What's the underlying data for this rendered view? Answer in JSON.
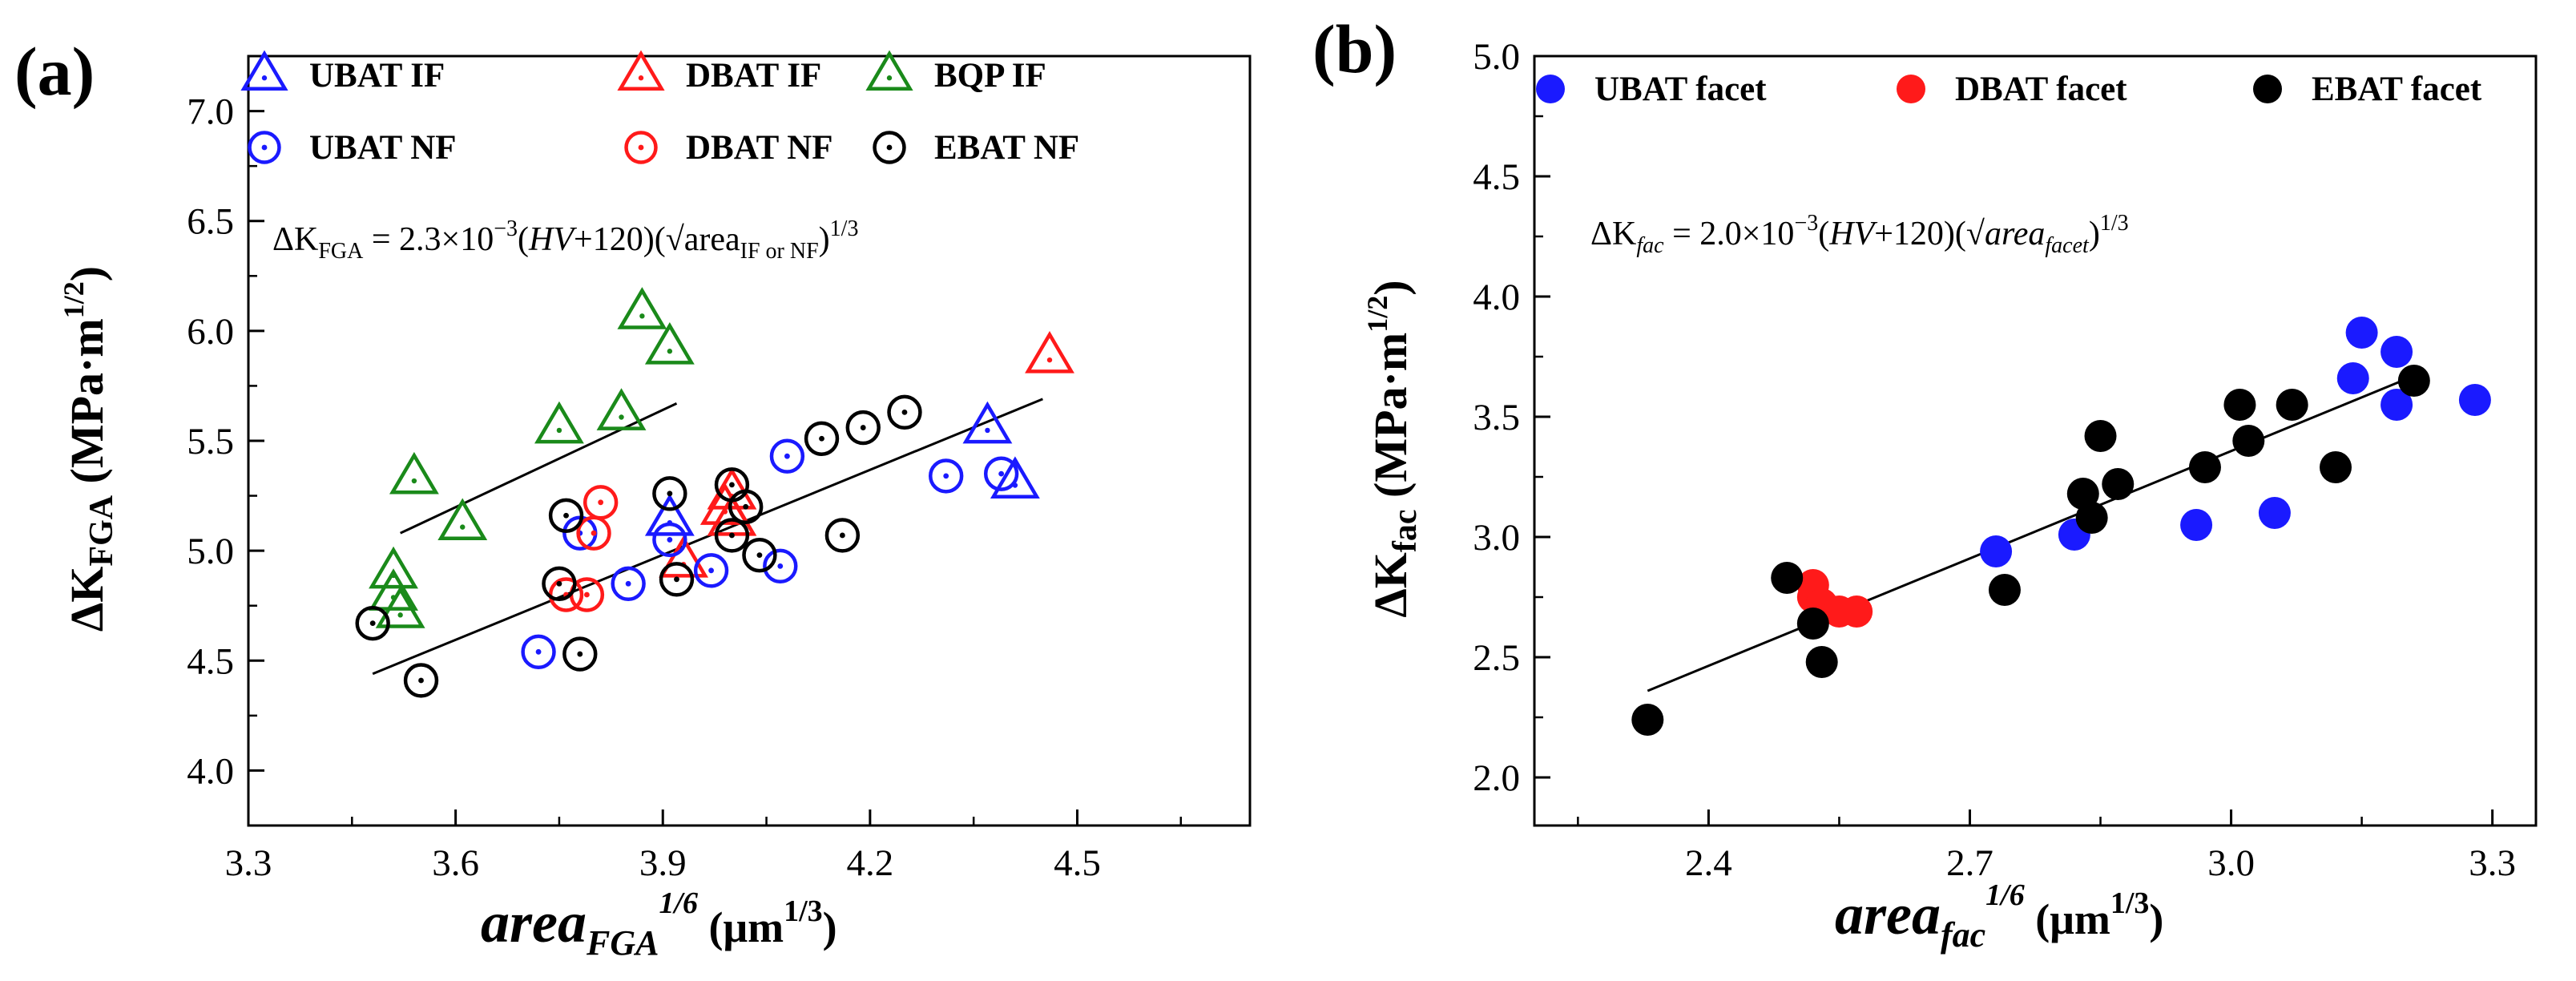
{
  "figure": {
    "description_labels": [
      "(a)",
      "(b)"
    ]
  },
  "chart_data": [
    {
      "panel": "(a)",
      "type": "scatter",
      "xlabel": {
        "main": "area",
        "sub": "FGA",
        "sup": "1/6",
        "unit": " (μm",
        "unit_sup": "1/3",
        "unit_end": ")"
      },
      "ylabel": {
        "main": "ΔK",
        "sub": "FGA",
        "unit": " (MPa·m",
        "unit_sup": "1/2",
        "unit_end": ")"
      },
      "xlim": [
        3.3,
        4.75
      ],
      "ylim": [
        3.75,
        7.25
      ],
      "xticks": [
        3.3,
        3.6,
        3.9,
        4.2,
        4.5
      ],
      "xtick_labels": [
        "3.3",
        "3.6",
        "3.9",
        "4.2",
        "4.5"
      ],
      "yticks": [
        4.0,
        4.5,
        5.0,
        5.5,
        6.0,
        6.5,
        7.0
      ],
      "ytick_labels": [
        "4.0",
        "4.5",
        "5.0",
        "5.5",
        "6.0",
        "6.5",
        "7.0"
      ],
      "grid": false,
      "legend_position": "top",
      "equation": {
        "lhs": "ΔK",
        "lhs_sub": "FGA",
        "body": "= 2.3×10",
        "exp": "−3",
        "mid": "(",
        "hv": "HV",
        "after_hv": "+120)(√area",
        "area_sub": "IF or NF",
        "close": ")",
        "power": "1/3"
      },
      "series": [
        {
          "name": "UBAT IF",
          "marker": "triangle",
          "color": "#1a1aff",
          "points": [
            [
              3.91,
              5.14
            ],
            [
              4.37,
              5.56
            ],
            [
              4.41,
              5.31
            ]
          ]
        },
        {
          "name": "DBAT IF",
          "marker": "triangle",
          "color": "#ff1a1a",
          "points": [
            [
              3.93,
              4.95
            ],
            [
              3.99,
              5.19
            ],
            [
              4.0,
              5.26
            ],
            [
              4.0,
              5.14
            ],
            [
              4.46,
              5.88
            ]
          ]
        },
        {
          "name": "BQP IF",
          "marker": "triangle",
          "color": "#1a8a1a",
          "points": [
            [
              3.51,
              4.9
            ],
            [
              3.51,
              4.8
            ],
            [
              3.52,
              4.72
            ],
            [
              3.54,
              5.33
            ],
            [
              3.61,
              5.12
            ],
            [
              3.75,
              5.56
            ],
            [
              3.84,
              5.62
            ],
            [
              3.87,
              6.08
            ],
            [
              3.91,
              5.92
            ]
          ]
        },
        {
          "name": "UBAT NF",
          "marker": "circle",
          "color": "#1a1aff",
          "points": [
            [
              3.72,
              4.54
            ],
            [
              3.78,
              5.08
            ],
            [
              3.85,
              4.85
            ],
            [
              3.91,
              5.05
            ],
            [
              3.97,
              4.91
            ],
            [
              4.07,
              4.93
            ],
            [
              4.08,
              5.43
            ],
            [
              4.31,
              5.34
            ],
            [
              4.39,
              5.35
            ]
          ]
        },
        {
          "name": "DBAT NF",
          "marker": "circle",
          "color": "#ff1a1a",
          "points": [
            [
              3.76,
              4.8
            ],
            [
              3.79,
              4.8
            ],
            [
              3.8,
              5.08
            ],
            [
              3.81,
              5.22
            ]
          ]
        },
        {
          "name": "EBAT NF",
          "marker": "circle",
          "color": "#000000",
          "points": [
            [
              3.48,
              4.67
            ],
            [
              3.55,
              4.41
            ],
            [
              3.75,
              4.85
            ],
            [
              3.76,
              5.16
            ],
            [
              3.78,
              4.53
            ],
            [
              3.91,
              5.26
            ],
            [
              3.92,
              4.87
            ],
            [
              4.0,
              5.3
            ],
            [
              4.0,
              5.07
            ],
            [
              4.02,
              5.2
            ],
            [
              4.04,
              4.98
            ],
            [
              4.13,
              5.51
            ],
            [
              4.16,
              5.07
            ],
            [
              4.19,
              5.56
            ],
            [
              4.25,
              5.63
            ]
          ]
        }
      ],
      "fit_lines": [
        {
          "from": [
            3.52,
            5.08
          ],
          "to": [
            3.92,
            5.67
          ]
        },
        {
          "from": [
            3.48,
            4.44
          ],
          "to": [
            4.45,
            5.69
          ]
        }
      ]
    },
    {
      "panel": "(b)",
      "type": "scatter",
      "xlabel": {
        "main": "area",
        "sub": "fac",
        "sup": "1/6",
        "unit": " (μm",
        "unit_sup": "1/3",
        "unit_end": ")"
      },
      "ylabel": {
        "main": "ΔK",
        "sub": "fac",
        "unit": " (MPa·m",
        "unit_sup": "1/2",
        "unit_end": ")"
      },
      "xlim": [
        2.2,
        3.35
      ],
      "ylim": [
        1.8,
        5.0
      ],
      "xticks": [
        2.4,
        2.7,
        3.0,
        3.3
      ],
      "xtick_labels": [
        "2.4",
        "2.7",
        "3.0",
        "3.3"
      ],
      "yticks": [
        2.0,
        2.5,
        3.0,
        3.5,
        4.0,
        4.5,
        5.0
      ],
      "ytick_labels": [
        "2.0",
        "2.5",
        "3.0",
        "3.5",
        "4.0",
        "4.5",
        "5.0"
      ],
      "grid": false,
      "legend_position": "top",
      "equation": {
        "lhs": "ΔK",
        "lhs_sub": "fac",
        "body": "= 2.0×10",
        "exp": "−3",
        "mid": "(",
        "hv": "HV",
        "after_hv": "+120)(√",
        "area_word": "area",
        "area_sub": "facet",
        "close": ")",
        "power": "1/3"
      },
      "series": [
        {
          "name": "UBAT facet",
          "marker": "filled-circle",
          "color": "#1a1aff",
          "points": [
            [
              2.73,
              2.94
            ],
            [
              2.82,
              3.01
            ],
            [
              2.96,
              3.05
            ],
            [
              3.05,
              3.1
            ],
            [
              3.14,
              3.66
            ],
            [
              3.15,
              3.85
            ],
            [
              3.19,
              3.77
            ],
            [
              3.19,
              3.55
            ],
            [
              3.28,
              3.57
            ]
          ]
        },
        {
          "name": "DBAT facet",
          "marker": "filled-circle",
          "color": "#ff1a1a",
          "points": [
            [
              2.52,
              2.8
            ],
            [
              2.52,
              2.75
            ],
            [
              2.53,
              2.72
            ],
            [
              2.55,
              2.69
            ],
            [
              2.57,
              2.69
            ]
          ]
        },
        {
          "name": "EBAT facet",
          "marker": "filled-circle",
          "color": "#000000",
          "points": [
            [
              2.33,
              2.24
            ],
            [
              2.49,
              2.83
            ],
            [
              2.52,
              2.64
            ],
            [
              2.53,
              2.48
            ],
            [
              2.74,
              2.78
            ],
            [
              2.83,
              3.18
            ],
            [
              2.84,
              3.08
            ],
            [
              2.85,
              3.42
            ],
            [
              2.87,
              3.22
            ],
            [
              2.97,
              3.29
            ],
            [
              3.01,
              3.55
            ],
            [
              3.02,
              3.4
            ],
            [
              3.07,
              3.55
            ],
            [
              3.12,
              3.29
            ],
            [
              3.21,
              3.65
            ]
          ]
        }
      ],
      "fit_lines": [
        {
          "from": [
            2.33,
            2.36
          ],
          "to": [
            3.21,
            3.67
          ]
        }
      ]
    }
  ]
}
